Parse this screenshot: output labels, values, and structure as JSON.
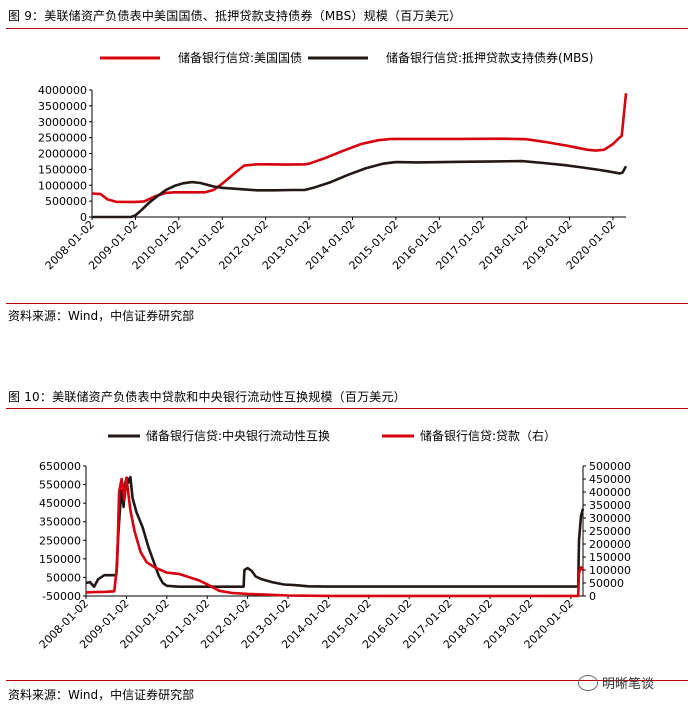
{
  "figure1": {
    "title": "图 9：美联储资产负债表中美国国债、抵押贷款支持债券（MBS）规模（百万美元）",
    "source": "资料来源：Wind，中信证券研究部"
  },
  "figure2": {
    "title": "图 10：美联储资产负债表中贷款和中央银行流动性互换规模（百万美元）",
    "source": "资料来源：Wind，中信证券研究部"
  },
  "watermark": "明晰笔谈",
  "colors": {
    "red": "#d7000f",
    "dark": "#231815",
    "rule": "#c0000b"
  },
  "chart_data": [
    {
      "type": "line",
      "x_ticks": [
        "2008-01-02",
        "2009-01-02",
        "2010-01-02",
        "2011-01-02",
        "2012-01-02",
        "2013-01-02",
        "2014-01-02",
        "2015-01-02",
        "2016-01-02",
        "2017-01-02",
        "2018-01-02",
        "2019-01-02",
        "2020-01-02"
      ],
      "ylim": [
        0,
        4000000
      ],
      "y_ticks": [
        "0",
        "500000",
        "1000000",
        "1500000",
        "2000000",
        "2500000",
        "3000000",
        "3500000",
        "4000000"
      ],
      "legend_placement": "top",
      "series": [
        {
          "name": "储备银行信贷:美国国债",
          "color": "#d7000f",
          "points": [
            [
              2008.0,
              740000
            ],
            [
              2008.2,
              720000
            ],
            [
              2008.35,
              560000
            ],
            [
              2008.55,
              480000
            ],
            [
              2008.8,
              476000
            ],
            [
              2009.0,
              475000
            ],
            [
              2009.2,
              490000
            ],
            [
              2009.45,
              650000
            ],
            [
              2009.7,
              760000
            ],
            [
              2009.9,
              777000
            ],
            [
              2010.3,
              777000
            ],
            [
              2010.6,
              777000
            ],
            [
              2010.8,
              850000
            ],
            [
              2011.0,
              1050000
            ],
            [
              2011.3,
              1400000
            ],
            [
              2011.5,
              1620000
            ],
            [
              2011.8,
              1660000
            ],
            [
              2012.0,
              1660000
            ],
            [
              2012.5,
              1650000
            ],
            [
              2012.9,
              1660000
            ],
            [
              2013.0,
              1680000
            ],
            [
              2013.4,
              1870000
            ],
            [
              2013.8,
              2090000
            ],
            [
              2014.2,
              2300000
            ],
            [
              2014.6,
              2420000
            ],
            [
              2014.9,
              2460000
            ],
            [
              2015.5,
              2460000
            ],
            [
              2016.5,
              2460000
            ],
            [
              2017.5,
              2465000
            ],
            [
              2018.0,
              2450000
            ],
            [
              2018.5,
              2350000
            ],
            [
              2019.0,
              2230000
            ],
            [
              2019.4,
              2120000
            ],
            [
              2019.6,
              2090000
            ],
            [
              2019.8,
              2120000
            ],
            [
              2020.0,
              2300000
            ],
            [
              2020.15,
              2500000
            ],
            [
              2020.2,
              2550000
            ],
            [
              2020.25,
              3200000
            ],
            [
              2020.3,
              3900000
            ]
          ]
        },
        {
          "name": "储备银行信贷:抵押贷款支持债券(MBS)",
          "color": "#231815",
          "points": [
            [
              2008.0,
              0
            ],
            [
              2008.5,
              0
            ],
            [
              2008.9,
              0
            ],
            [
              2009.0,
              50000
            ],
            [
              2009.15,
              230000
            ],
            [
              2009.3,
              430000
            ],
            [
              2009.5,
              650000
            ],
            [
              2009.7,
              850000
            ],
            [
              2009.9,
              980000
            ],
            [
              2010.1,
              1060000
            ],
            [
              2010.3,
              1100000
            ],
            [
              2010.5,
              1070000
            ],
            [
              2010.8,
              960000
            ],
            [
              2011.0,
              920000
            ],
            [
              2011.4,
              880000
            ],
            [
              2011.8,
              840000
            ],
            [
              2012.2,
              840000
            ],
            [
              2012.6,
              850000
            ],
            [
              2012.9,
              850000
            ],
            [
              2013.1,
              920000
            ],
            [
              2013.5,
              1100000
            ],
            [
              2013.9,
              1330000
            ],
            [
              2014.3,
              1530000
            ],
            [
              2014.7,
              1680000
            ],
            [
              2015.0,
              1730000
            ],
            [
              2015.5,
              1720000
            ],
            [
              2016.5,
              1740000
            ],
            [
              2017.3,
              1750000
            ],
            [
              2017.9,
              1760000
            ],
            [
              2018.4,
              1700000
            ],
            [
              2018.9,
              1630000
            ],
            [
              2019.3,
              1560000
            ],
            [
              2019.7,
              1480000
            ],
            [
              2020.0,
              1410000
            ],
            [
              2020.15,
              1370000
            ],
            [
              2020.22,
              1400000
            ],
            [
              2020.3,
              1600000
            ]
          ]
        }
      ]
    },
    {
      "type": "line",
      "x_ticks": [
        "2008-01-02",
        "2009-01-02",
        "2010-01-02",
        "2011-01-02",
        "2012-01-02",
        "2013-01-02",
        "2014-01-02",
        "2015-01-02",
        "2016-01-02",
        "2017-01-02",
        "2018-01-02",
        "2019-01-02",
        "2020-01-02"
      ],
      "ylim_left": [
        -50000,
        650000
      ],
      "y_ticks_left": [
        "650000",
        "550000",
        "450000",
        "350000",
        "250000",
        "150000",
        "50000",
        "-50000"
      ],
      "ylim_right": [
        0,
        500000
      ],
      "y_ticks_right": [
        "500000",
        "450000",
        "400000",
        "350000",
        "300000",
        "250000",
        "200000",
        "150000",
        "100000",
        "50000",
        "0"
      ],
      "legend_placement": "top",
      "series": [
        {
          "name": "储备银行信贷:中央银行流动性互换",
          "axis": "left",
          "color": "#231815",
          "points": [
            [
              2008.0,
              20000
            ],
            [
              2008.1,
              25000
            ],
            [
              2008.2,
              0
            ],
            [
              2008.3,
              40000
            ],
            [
              2008.45,
              62000
            ],
            [
              2008.6,
              62000
            ],
            [
              2008.75,
              62000
            ],
            [
              2008.8,
              280000
            ],
            [
              2008.87,
              520000
            ],
            [
              2008.93,
              430000
            ],
            [
              2008.97,
              560000
            ],
            [
              2009.02,
              585000
            ],
            [
              2009.05,
              560000
            ],
            [
              2009.1,
              590000
            ],
            [
              2009.15,
              480000
            ],
            [
              2009.25,
              400000
            ],
            [
              2009.4,
              320000
            ],
            [
              2009.55,
              210000
            ],
            [
              2009.7,
              120000
            ],
            [
              2009.8,
              60000
            ],
            [
              2009.9,
              20000
            ],
            [
              2010.0,
              5000
            ],
            [
              2010.3,
              0
            ],
            [
              2011.0,
              0
            ],
            [
              2011.6,
              0
            ],
            [
              2011.9,
              0
            ],
            [
              2011.92,
              90000
            ],
            [
              2012.0,
              100000
            ],
            [
              2012.1,
              85000
            ],
            [
              2012.2,
              55000
            ],
            [
              2012.35,
              40000
            ],
            [
              2012.6,
              25000
            ],
            [
              2012.9,
              12000
            ],
            [
              2013.2,
              8000
            ],
            [
              2013.5,
              2000
            ],
            [
              2014.0,
              500
            ],
            [
              2015.0,
              500
            ],
            [
              2016.0,
              500
            ],
            [
              2017.5,
              500
            ],
            [
              2018.5,
              500
            ],
            [
              2019.5,
              500
            ],
            [
              2020.0,
              500
            ],
            [
              2020.18,
              500
            ],
            [
              2020.2,
              250000
            ],
            [
              2020.25,
              380000
            ],
            [
              2020.3,
              420000
            ]
          ]
        },
        {
          "name": "储备银行信贷:贷款（右）",
          "axis": "right",
          "color": "#d7000f",
          "points": [
            [
              2008.0,
              14000
            ],
            [
              2008.2,
              15000
            ],
            [
              2008.5,
              16000
            ],
            [
              2008.7,
              18000
            ],
            [
              2008.77,
              120000
            ],
            [
              2008.82,
              400000
            ],
            [
              2008.88,
              450000
            ],
            [
              2008.95,
              370000
            ],
            [
              2009.0,
              455000
            ],
            [
              2009.1,
              330000
            ],
            [
              2009.2,
              250000
            ],
            [
              2009.35,
              170000
            ],
            [
              2009.5,
              130000
            ],
            [
              2009.7,
              110000
            ],
            [
              2009.85,
              100000
            ],
            [
              2010.0,
              90000
            ],
            [
              2010.3,
              85000
            ],
            [
              2010.5,
              75000
            ],
            [
              2010.8,
              60000
            ],
            [
              2011.0,
              45000
            ],
            [
              2011.3,
              20000
            ],
            [
              2011.6,
              12000
            ],
            [
              2012.0,
              8000
            ],
            [
              2012.5,
              5000
            ],
            [
              2013.0,
              2000
            ],
            [
              2014.0,
              500
            ],
            [
              2016.0,
              300
            ],
            [
              2018.0,
              300
            ],
            [
              2019.5,
              300
            ],
            [
              2020.0,
              300
            ],
            [
              2020.18,
              500
            ],
            [
              2020.2,
              90000
            ],
            [
              2020.25,
              110000
            ],
            [
              2020.3,
              100000
            ]
          ]
        }
      ]
    }
  ]
}
